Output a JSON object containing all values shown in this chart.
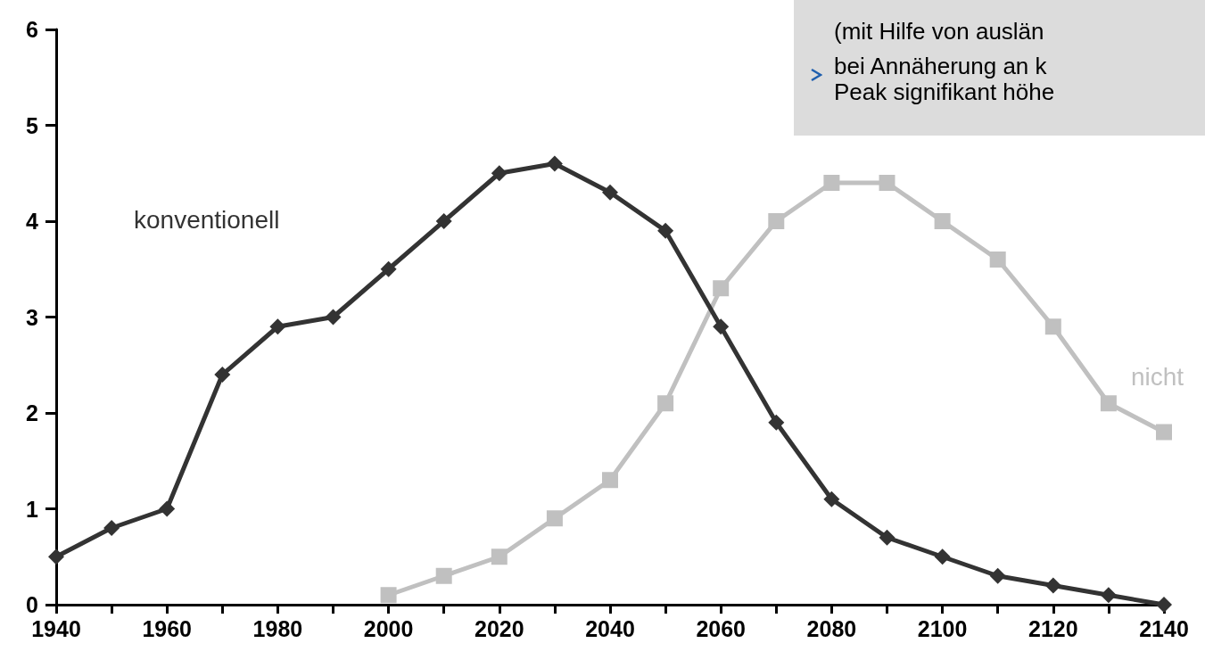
{
  "chart_data": {
    "type": "line",
    "x": [
      1940,
      1950,
      1960,
      1970,
      1980,
      1990,
      2000,
      2010,
      2020,
      2030,
      2040,
      2050,
      2060,
      2070,
      2080,
      2090,
      2100,
      2110,
      2120,
      2130,
      2140
    ],
    "series": [
      {
        "name": "konventionell",
        "color": "#333333",
        "marker": "diamond",
        "values": [
          0.5,
          0.8,
          1.0,
          2.4,
          2.9,
          3.0,
          3.5,
          4.0,
          4.5,
          4.6,
          4.3,
          3.9,
          2.9,
          1.9,
          1.1,
          0.7,
          0.5,
          0.3,
          0.2,
          0.1,
          0
        ]
      },
      {
        "name": "nicht",
        "color": "#c0c0c0",
        "marker": "square",
        "values": [
          null,
          null,
          null,
          null,
          null,
          null,
          0.1,
          0.3,
          0.5,
          0.9,
          1.3,
          2.1,
          3.3,
          4.0,
          4.4,
          4.4,
          4.0,
          3.6,
          2.9,
          2.1,
          1.8
        ]
      }
    ],
    "xlim": [
      1940,
      2140
    ],
    "xticks": [
      1940,
      {
        "value": 1950,
        "label": null
      },
      1960,
      {
        "value": 1970,
        "label": null
      },
      1980,
      {
        "value": 1990,
        "label": null
      },
      2000,
      {
        "value": 2010,
        "label": null
      },
      2020,
      {
        "value": 2030,
        "label": null
      },
      2040,
      {
        "value": 2050,
        "label": null
      },
      2060,
      {
        "value": 2070,
        "label": null
      },
      2080,
      {
        "value": 2090,
        "label": null
      },
      2100,
      {
        "value": 2110,
        "label": null
      },
      2120,
      {
        "value": 2130,
        "label": null
      },
      2140
    ],
    "ylim": [
      0,
      6
    ],
    "yticks": [
      0,
      1,
      2,
      3,
      4,
      5,
      6
    ],
    "grid": false,
    "legend": false,
    "line_style": "solid",
    "annotations": [
      "(mit Hilfe von auslän",
      "bei Annäherung an k\nPeak signifikant höhe"
    ]
  }
}
